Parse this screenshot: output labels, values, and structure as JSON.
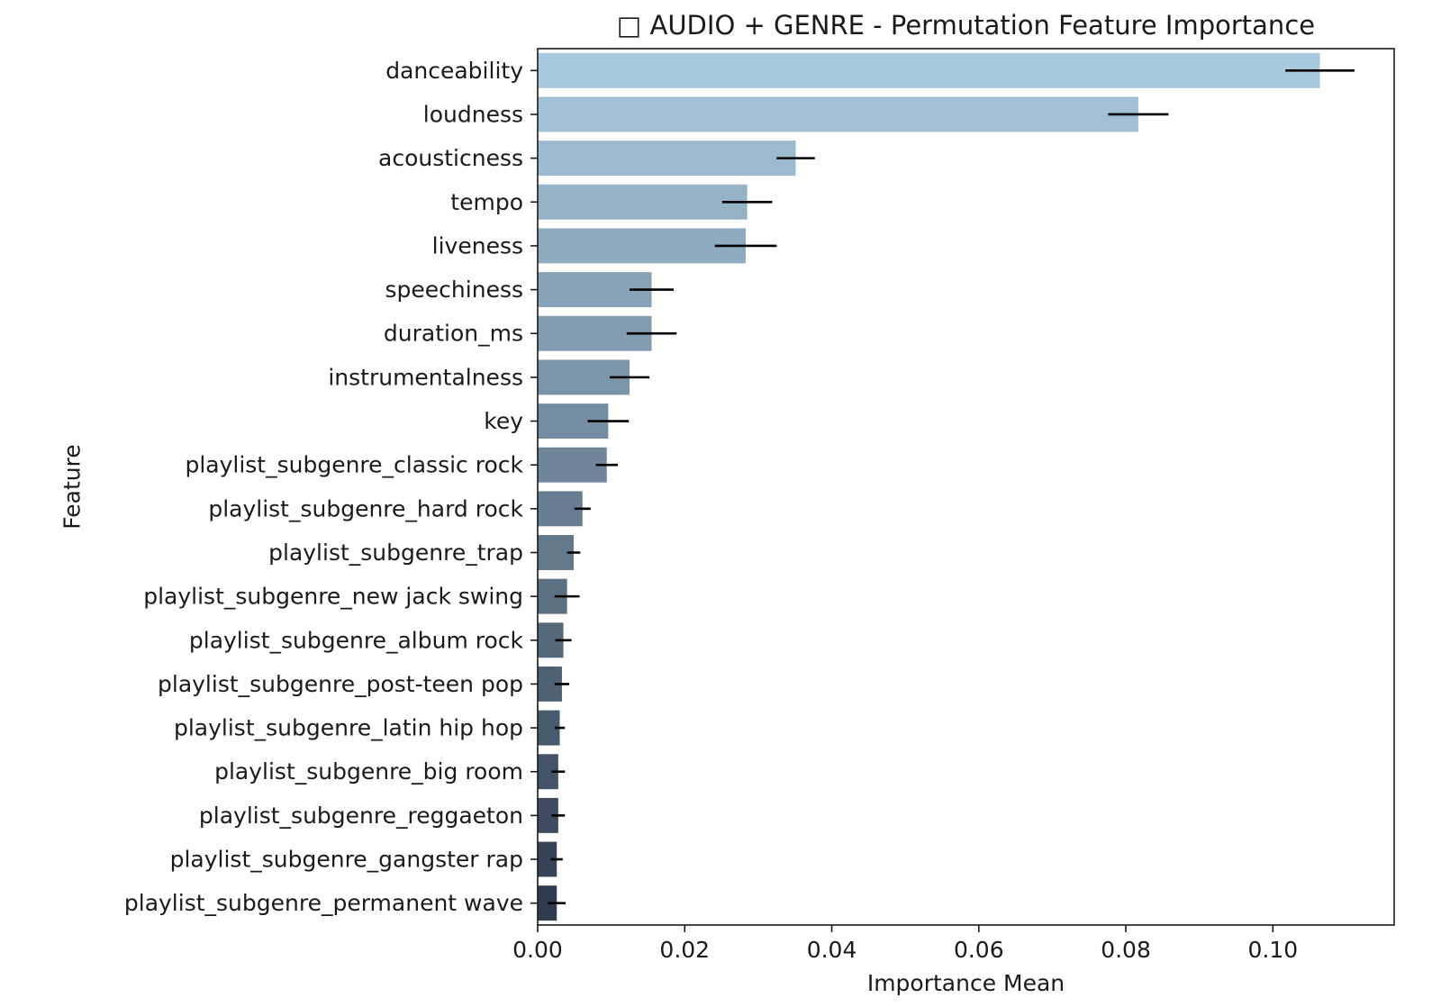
{
  "chart_data": {
    "type": "bar",
    "orientation": "horizontal",
    "title": "□ AUDIO + GENRE - Permutation Feature Importance",
    "xlabel": "Importance Mean",
    "ylabel": "Feature",
    "xlim": [
      0,
      0.1165
    ],
    "xticks": [
      0.0,
      0.02,
      0.04,
      0.06,
      0.08,
      0.1
    ],
    "xtick_labels": [
      "0.00",
      "0.02",
      "0.04",
      "0.06",
      "0.08",
      "0.10"
    ],
    "grid": false,
    "colormap": "Blues_d (light blue at top to dark slate at bottom)",
    "bar_color_start": "#a8c8de",
    "bar_color_end": "#2f3d4f",
    "categories": [
      "danceability",
      "loudness",
      "acousticness",
      "tempo",
      "liveness",
      "speechiness",
      "duration_ms",
      "instrumentalness",
      "key",
      "playlist_subgenre_classic rock",
      "playlist_subgenre_hard rock",
      "playlist_subgenre_trap",
      "playlist_subgenre_new jack swing",
      "playlist_subgenre_album rock",
      "playlist_subgenre_post-teen pop",
      "playlist_subgenre_latin hip hop",
      "playlist_subgenre_big room",
      "playlist_subgenre_reggaeton",
      "playlist_subgenre_gangster rap",
      "playlist_subgenre_permanent wave"
    ],
    "values": [
      0.1064,
      0.0817,
      0.0351,
      0.0285,
      0.0283,
      0.0155,
      0.0155,
      0.0125,
      0.0096,
      0.0094,
      0.0061,
      0.0049,
      0.004,
      0.0035,
      0.0033,
      0.003,
      0.0028,
      0.0028,
      0.0026,
      0.0026
    ],
    "errors": [
      0.0047,
      0.0041,
      0.0026,
      0.0034,
      0.0042,
      0.003,
      0.0034,
      0.0027,
      0.0028,
      0.0015,
      0.0011,
      0.0009,
      0.0017,
      0.0011,
      0.001,
      0.0007,
      0.0009,
      0.0009,
      0.0008,
      0.0012
    ]
  }
}
